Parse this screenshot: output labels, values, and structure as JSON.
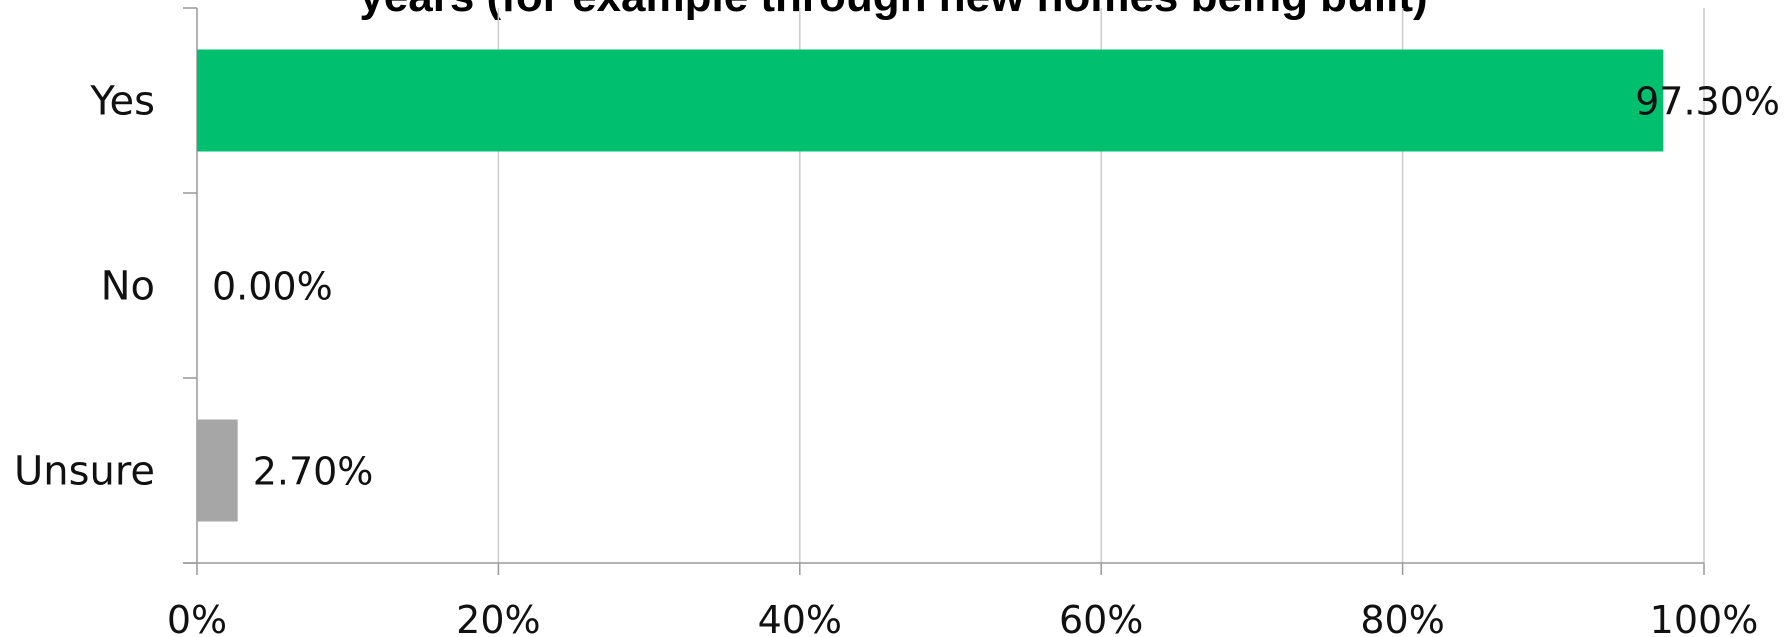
{
  "chart_data": {
    "type": "bar",
    "orientation": "horizontal",
    "title": "years (for example through new homes being built)",
    "categories": [
      "Yes",
      "No",
      "Unsure"
    ],
    "series": [
      {
        "values": [
          97.3,
          0.0,
          2.7
        ]
      }
    ],
    "value_labels": [
      "97.30%",
      "0.00%",
      "2.70%"
    ],
    "bar_colors": [
      "#00bf6f",
      "#00bf6f",
      "#a6a6a6"
    ],
    "xlim": [
      0,
      100
    ],
    "x_ticks": [
      0,
      20,
      40,
      60,
      80,
      100
    ],
    "x_tick_labels": [
      "0%",
      "20%",
      "40%",
      "60%",
      "80%",
      "100%"
    ],
    "grid": true,
    "gridline_color": "#cccccc",
    "axis_color": "#999999",
    "legend": "none"
  }
}
